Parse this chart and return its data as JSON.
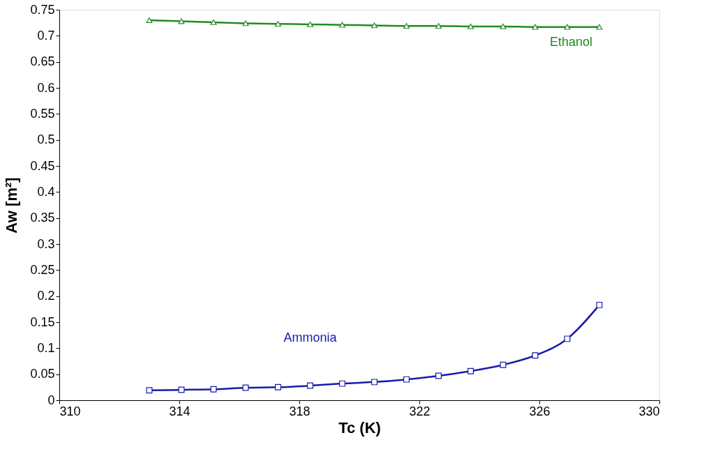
{
  "chart_data": {
    "type": "line",
    "xlabel": "Tc  (K)",
    "ylabel": "Aw  [m²]",
    "xlim": [
      310,
      330
    ],
    "xticks": [
      310,
      314,
      318,
      322,
      326,
      330
    ],
    "ylim": [
      0,
      0.75
    ],
    "yticks": [
      0,
      0.05,
      0.1,
      0.15,
      0.2,
      0.25,
      0.3,
      0.35,
      0.4,
      0.45,
      0.5,
      0.55,
      0.6,
      0.65,
      0.7,
      0.75
    ],
    "grid": false,
    "legend": false,
    "x": [
      313,
      314.07,
      315.14,
      316.21,
      317.29,
      318.36,
      319.43,
      320.5,
      321.57,
      322.64,
      323.71,
      324.79,
      325.86,
      326.93,
      328
    ],
    "series": [
      {
        "name": "Ethanol",
        "color": "#228b22",
        "marker": "triangle",
        "values": [
          0.73,
          0.728,
          0.726,
          0.724,
          0.723,
          0.722,
          0.721,
          0.72,
          0.719,
          0.719,
          0.718,
          0.718,
          0.717,
          0.717,
          0.717
        ]
      },
      {
        "name": "Ammonia",
        "color": "#1a1aaa",
        "marker": "square",
        "values": [
          0.019,
          0.02,
          0.021,
          0.024,
          0.025,
          0.028,
          0.032,
          0.035,
          0.04,
          0.047,
          0.056,
          0.068,
          0.086,
          0.118,
          0.183
        ]
      }
    ]
  }
}
